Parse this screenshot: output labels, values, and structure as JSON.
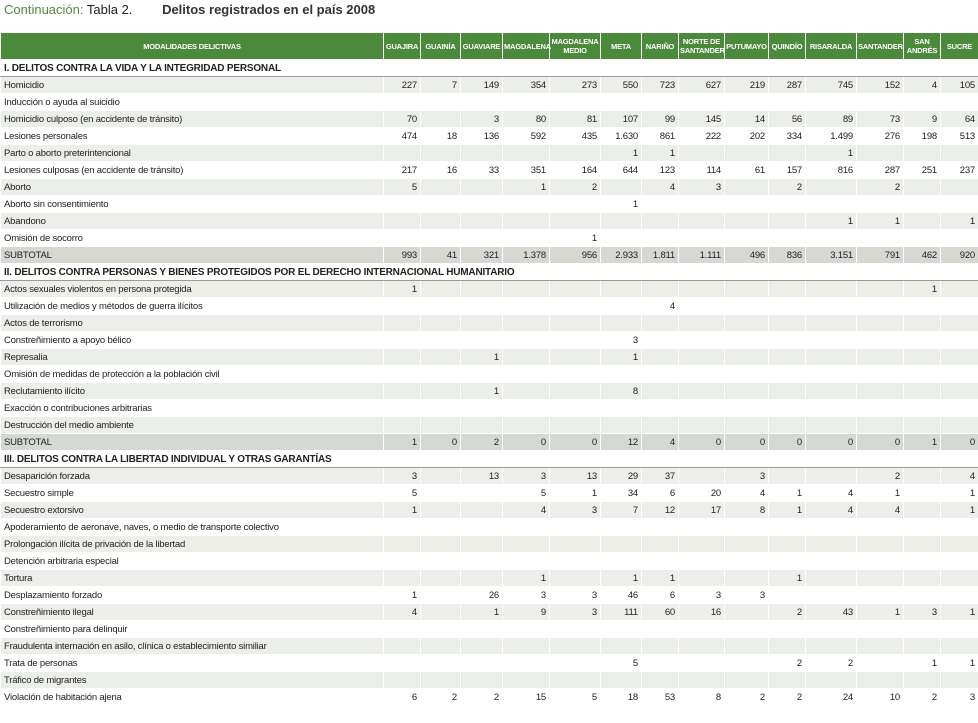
{
  "title": {
    "prefix": "Continuación:",
    "label": "Tabla 2.",
    "text": "Delitos registrados en el país 2008"
  },
  "table": {
    "columns": [
      "MODALIDADES DELICTIVAS",
      "GUAJIRA",
      "GUAINÍA",
      "GUAVIARE",
      "MAGDALENA",
      "MAGDALENA MEDIO",
      "META",
      "NARIÑO",
      "NORTE DE SANTANDER",
      "PUTUMAYO",
      "QUINDÍO",
      "RISARALDA",
      "SANTANDER",
      "SAN ANDRÉS",
      "SUCRE"
    ],
    "sections": [
      {
        "title": "I. DELITOS CONTRA LA VIDA Y LA INTEGRIDAD PERSONAL",
        "rows": [
          {
            "label": "Homicidio",
            "values": [
              "227",
              "7",
              "149",
              "354",
              "273",
              "550",
              "723",
              "627",
              "219",
              "287",
              "745",
              "152",
              "4",
              "105"
            ]
          },
          {
            "label": "Inducción o ayuda al suicidio",
            "values": [
              null,
              null,
              null,
              null,
              null,
              null,
              null,
              null,
              null,
              null,
              null,
              null,
              null,
              null
            ]
          },
          {
            "label": "Homicidio culposo (en accidente de tránsito)",
            "values": [
              "70",
              null,
              "3",
              "80",
              "81",
              "107",
              "99",
              "145",
              "14",
              "56",
              "89",
              "73",
              "9",
              "64"
            ]
          },
          {
            "label": "Lesiones personales",
            "values": [
              "474",
              "18",
              "136",
              "592",
              "435",
              "1.630",
              "861",
              "222",
              "202",
              "334",
              "1.499",
              "276",
              "198",
              "513"
            ]
          },
          {
            "label": "Parto o aborto preterintencional",
            "values": [
              null,
              null,
              null,
              null,
              null,
              "1",
              "1",
              null,
              null,
              null,
              "1",
              null,
              null,
              null
            ]
          },
          {
            "label": "Lesiones culposas (en accidente de tránsito)",
            "values": [
              "217",
              "16",
              "33",
              "351",
              "164",
              "644",
              "123",
              "114",
              "61",
              "157",
              "816",
              "287",
              "251",
              "237"
            ]
          },
          {
            "label": "Aborto",
            "values": [
              "5",
              null,
              null,
              "1",
              "2",
              null,
              "4",
              "3",
              null,
              "2",
              null,
              "2",
              null,
              null
            ]
          },
          {
            "label": "Aborto sin consentimiento",
            "values": [
              null,
              null,
              null,
              null,
              null,
              "1",
              null,
              null,
              null,
              null,
              null,
              null,
              null,
              null
            ]
          },
          {
            "label": "Abandono",
            "values": [
              null,
              null,
              null,
              null,
              null,
              null,
              null,
              null,
              null,
              null,
              "1",
              "1",
              null,
              "1"
            ]
          },
          {
            "label": "Omisión de socorro",
            "values": [
              null,
              null,
              null,
              null,
              "1",
              null,
              null,
              null,
              null,
              null,
              null,
              null,
              null,
              null
            ]
          }
        ],
        "subtotal": {
          "label": "SUBTOTAL",
          "values": [
            "993",
            "41",
            "321",
            "1.378",
            "956",
            "2.933",
            "1.811",
            "1.111",
            "496",
            "836",
            "3.151",
            "791",
            "462",
            "920"
          ]
        }
      },
      {
        "title": "II. DELITOS CONTRA PERSONAS Y BIENES PROTEGIDOS POR EL DERECHO INTERNACIONAL HUMANITARIO",
        "rows": [
          {
            "label": "Actos sexuales violentos en persona protegida",
            "values": [
              "1",
              null,
              null,
              null,
              null,
              null,
              null,
              null,
              null,
              null,
              null,
              null,
              "1",
              null
            ]
          },
          {
            "label": "Utilización de medios y métodos de guerra ilícitos",
            "values": [
              null,
              null,
              null,
              null,
              null,
              null,
              "4",
              null,
              null,
              null,
              null,
              null,
              null,
              null
            ]
          },
          {
            "label": "Actos de terrorismo",
            "values": [
              null,
              null,
              null,
              null,
              null,
              null,
              null,
              null,
              null,
              null,
              null,
              null,
              null,
              null
            ]
          },
          {
            "label": "Constreñimiento a apoyo bélico",
            "values": [
              null,
              null,
              null,
              null,
              null,
              "3",
              null,
              null,
              null,
              null,
              null,
              null,
              null,
              null
            ]
          },
          {
            "label": "Represalia",
            "values": [
              null,
              null,
              "1",
              null,
              null,
              "1",
              null,
              null,
              null,
              null,
              null,
              null,
              null,
              null
            ]
          },
          {
            "label": "Omisión de medidas de protección a la población civil",
            "values": [
              null,
              null,
              null,
              null,
              null,
              null,
              null,
              null,
              null,
              null,
              null,
              null,
              null,
              null
            ]
          },
          {
            "label": "Reclutamiento ilícito",
            "values": [
              null,
              null,
              "1",
              null,
              null,
              "8",
              null,
              null,
              null,
              null,
              null,
              null,
              null,
              null
            ]
          },
          {
            "label": "Exacción o contribuciones arbitrarias",
            "values": [
              null,
              null,
              null,
              null,
              null,
              null,
              null,
              null,
              null,
              null,
              null,
              null,
              null,
              null
            ]
          },
          {
            "label": "Destrucción del medio ambiente",
            "values": [
              null,
              null,
              null,
              null,
              null,
              null,
              null,
              null,
              null,
              null,
              null,
              null,
              null,
              null
            ]
          }
        ],
        "subtotal": {
          "label": "SUBTOTAL",
          "values": [
            "1",
            "0",
            "2",
            "0",
            "0",
            "12",
            "4",
            "0",
            "0",
            "0",
            "0",
            "0",
            "1",
            "0"
          ]
        }
      },
      {
        "title": "III. DELITOS CONTRA LA LIBERTAD INDIVIDUAL Y OTRAS GARANTÍAS",
        "rows": [
          {
            "label": "Desaparición forzada",
            "values": [
              "3",
              null,
              "13",
              "3",
              "13",
              "29",
              "37",
              null,
              "3",
              null,
              null,
              "2",
              null,
              "4"
            ]
          },
          {
            "label": "Secuestro simple",
            "values": [
              "5",
              null,
              null,
              "5",
              "1",
              "34",
              "6",
              "20",
              "4",
              "1",
              "4",
              "1",
              null,
              "1"
            ]
          },
          {
            "label": "Secuestro extorsivo",
            "values": [
              "1",
              null,
              null,
              "4",
              "3",
              "7",
              "12",
              "17",
              "8",
              "1",
              "4",
              "4",
              null,
              "1"
            ]
          },
          {
            "label": "Apoderamiento de aeronave, naves, o medio de transporte colectivo",
            "values": [
              null,
              null,
              null,
              null,
              null,
              null,
              null,
              null,
              null,
              null,
              null,
              null,
              null,
              null
            ]
          },
          {
            "label": "Prolongación ilícita de privación de la libertad",
            "values": [
              null,
              null,
              null,
              null,
              null,
              null,
              null,
              null,
              null,
              null,
              null,
              null,
              null,
              null
            ]
          },
          {
            "label": "Detención arbitraria especial",
            "values": [
              null,
              null,
              null,
              null,
              null,
              null,
              null,
              null,
              null,
              null,
              null,
              null,
              null,
              null
            ]
          },
          {
            "label": "Tortura",
            "values": [
              null,
              null,
              null,
              "1",
              null,
              "1",
              "1",
              null,
              null,
              "1",
              null,
              null,
              null,
              null
            ]
          },
          {
            "label": "Desplazamiento forzado",
            "values": [
              "1",
              null,
              "26",
              "3",
              "3",
              "46",
              "6",
              "3",
              "3",
              null,
              null,
              null,
              null,
              null
            ]
          },
          {
            "label": "Constreñimiento ilegal",
            "values": [
              "4",
              null,
              "1",
              "9",
              "3",
              "111",
              "60",
              "16",
              null,
              "2",
              "43",
              "1",
              "3",
              "1"
            ]
          },
          {
            "label": "Constreñimiento para delinquir",
            "values": [
              null,
              null,
              null,
              null,
              null,
              null,
              null,
              null,
              null,
              null,
              null,
              null,
              null,
              null
            ]
          },
          {
            "label": "Fraudulenta internación en asilo, clínica o establecimiento similiar",
            "values": [
              null,
              null,
              null,
              null,
              null,
              null,
              null,
              null,
              null,
              null,
              null,
              null,
              null,
              null
            ]
          },
          {
            "label": "Trata de personas",
            "values": [
              null,
              null,
              null,
              null,
              null,
              "5",
              null,
              null,
              null,
              "2",
              "2",
              null,
              "1",
              "1"
            ]
          },
          {
            "label": "Tráfico de migrantes",
            "values": [
              null,
              null,
              null,
              null,
              null,
              null,
              null,
              null,
              null,
              null,
              null,
              null,
              null,
              null
            ]
          },
          {
            "label": "Violación de habitación ajena",
            "values": [
              "6",
              "2",
              "2",
              "15",
              "5",
              "18",
              "53",
              "8",
              "2",
              "2",
              "24",
              "10",
              "2",
              "3"
            ]
          }
        ]
      }
    ]
  }
}
